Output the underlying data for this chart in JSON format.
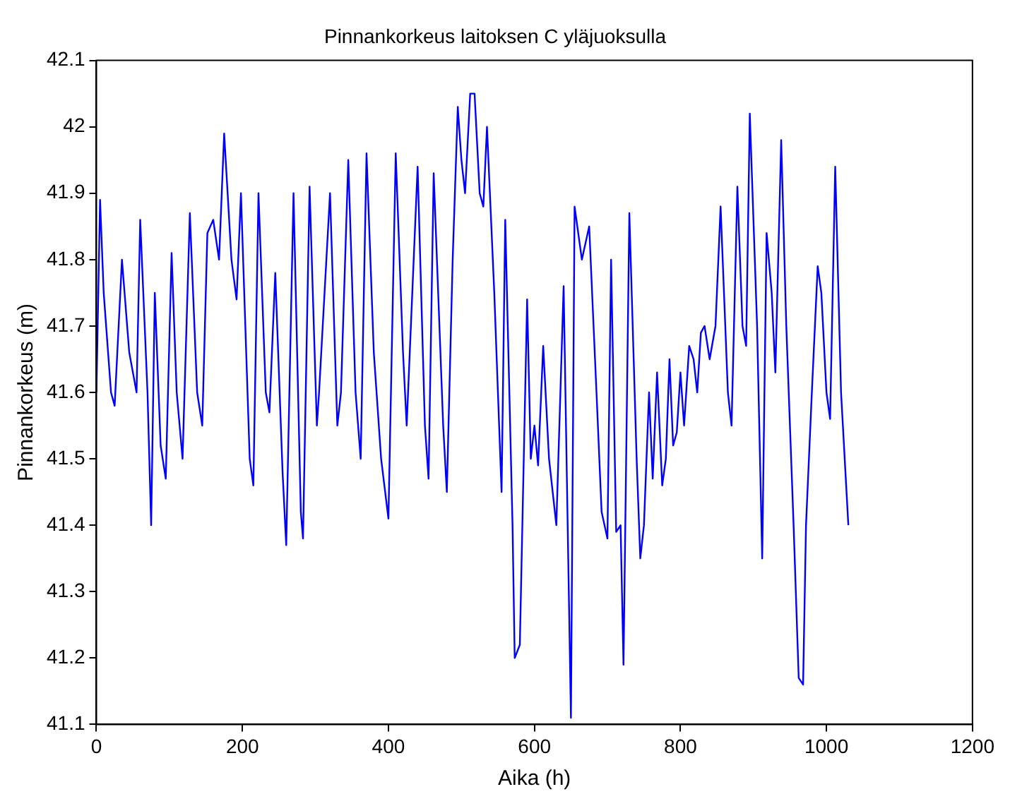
{
  "chart_data": {
    "type": "line",
    "title": "Pinnankorkeus laitoksen C yläjuoksulla",
    "xlabel": "Aika (h)",
    "ylabel": "Pinnankorkeus (m)",
    "xlim": [
      0,
      1200
    ],
    "xticks": [
      0,
      200,
      400,
      600,
      800,
      1000,
      1200
    ],
    "ylim": [
      41.1,
      42.1
    ],
    "yticks": [
      41.1,
      41.2,
      41.3,
      41.4,
      41.5,
      41.6,
      41.7,
      41.8,
      41.9,
      42,
      42.1
    ],
    "grid": false,
    "legend": false,
    "marker": "none",
    "line_style": "solid",
    "series": [
      {
        "color": "#0000ff",
        "x": [
          0,
          5,
          10,
          20,
          25,
          35,
          45,
          55,
          60,
          70,
          75,
          80,
          88,
          95,
          103,
          110,
          118,
          128,
          138,
          145,
          152,
          160,
          168,
          175,
          185,
          192,
          198,
          210,
          215,
          222,
          232,
          237,
          245,
          255,
          260,
          270,
          280,
          283,
          292,
          302,
          305,
          320,
          330,
          335,
          345,
          355,
          362,
          370,
          380,
          390,
          400,
          410,
          420,
          425,
          440,
          450,
          455,
          462,
          475,
          480,
          488,
          495,
          500,
          505,
          512,
          518,
          525,
          530,
          535,
          545,
          555,
          560,
          570,
          573,
          580,
          590,
          595,
          600,
          605,
          612,
          620,
          630,
          640,
          650,
          655,
          665,
          675,
          685,
          692,
          700,
          705,
          712,
          718,
          722,
          730,
          740,
          745,
          750,
          757,
          762,
          768,
          775,
          780,
          785,
          790,
          795,
          800,
          805,
          812,
          818,
          823,
          828,
          833,
          840,
          848,
          855,
          865,
          870,
          878,
          885,
          890,
          895,
          905,
          912,
          918,
          925,
          930,
          938,
          945,
          955,
          962,
          968,
          972,
          980,
          988,
          993,
          1000,
          1005,
          1012,
          1020,
          1030
        ],
        "values": [
          41.6,
          41.89,
          41.75,
          41.6,
          41.58,
          41.8,
          41.66,
          41.6,
          41.86,
          41.6,
          41.4,
          41.75,
          41.52,
          41.47,
          41.81,
          41.6,
          41.5,
          41.87,
          41.6,
          41.55,
          41.84,
          41.86,
          41.8,
          41.99,
          41.8,
          41.74,
          41.9,
          41.5,
          41.46,
          41.9,
          41.6,
          41.57,
          41.78,
          41.48,
          41.37,
          41.9,
          41.42,
          41.38,
          41.91,
          41.55,
          41.6,
          41.9,
          41.55,
          41.6,
          41.95,
          41.6,
          41.5,
          41.96,
          41.66,
          41.5,
          41.41,
          41.96,
          41.66,
          41.55,
          41.94,
          41.55,
          41.47,
          41.93,
          41.55,
          41.45,
          41.8,
          42.03,
          41.95,
          41.9,
          42.05,
          42.05,
          41.9,
          41.88,
          42,
          41.75,
          41.45,
          41.86,
          41.4,
          41.2,
          41.22,
          41.74,
          41.5,
          41.55,
          41.49,
          41.67,
          41.5,
          41.4,
          41.76,
          41.11,
          41.88,
          41.8,
          41.85,
          41.6,
          41.42,
          41.38,
          41.8,
          41.39,
          41.4,
          41.19,
          41.87,
          41.5,
          41.35,
          41.4,
          41.6,
          41.47,
          41.63,
          41.46,
          41.5,
          41.65,
          41.52,
          41.54,
          41.63,
          41.55,
          41.67,
          41.65,
          41.6,
          41.69,
          41.7,
          41.65,
          41.7,
          41.88,
          41.6,
          41.55,
          41.91,
          41.7,
          41.67,
          42.02,
          41.7,
          41.35,
          41.84,
          41.75,
          41.63,
          41.98,
          41.7,
          41.4,
          41.17,
          41.16,
          41.4,
          41.6,
          41.79,
          41.75,
          41.6,
          41.56,
          41.94,
          41.6,
          41.4
        ]
      }
    ]
  }
}
